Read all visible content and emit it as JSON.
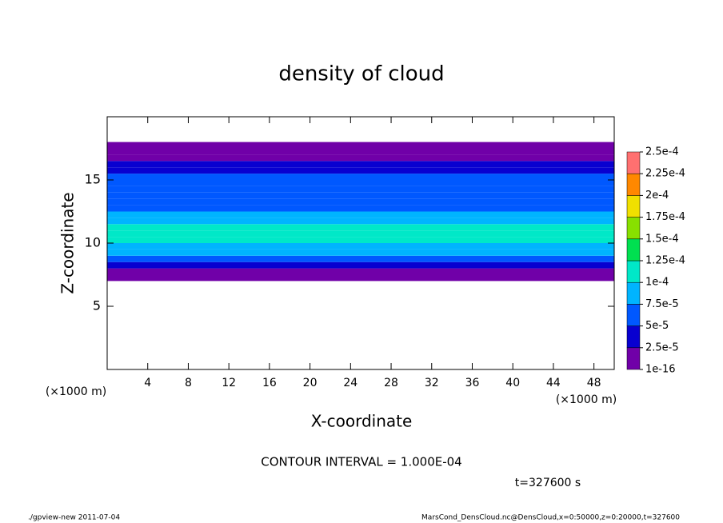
{
  "chart_data": {
    "type": "contour",
    "title": "density of cloud",
    "xlabel": "X-coordinate",
    "ylabel": "Z-coordinate",
    "x_unit": "(×1000 m)",
    "y_unit": "(×1000 m)",
    "xlim": [
      0,
      50
    ],
    "xticks": [
      4,
      8,
      12,
      16,
      20,
      24,
      28,
      32,
      36,
      40,
      44,
      48
    ],
    "ylim": [
      0,
      20
    ],
    "yticks": [
      5,
      10,
      15
    ],
    "z": [
      7,
      7.5,
      8,
      8.5,
      9,
      9.5,
      10,
      10.5,
      11,
      11.5,
      12,
      12.5,
      13,
      13.5,
      14,
      14.5,
      15,
      15.5,
      16,
      16.5,
      17,
      17.5
    ],
    "profile": [
      1e-05,
      2e-05,
      4e-05,
      6e-05,
      8e-05,
      9.5e-05,
      0.000105,
      0.00011,
      0.000105,
      9e-05,
      8e-05,
      7e-05,
      6.5e-05,
      6e-05,
      6e-05,
      5.5e-05,
      5e-05,
      4.5e-05,
      3e-05,
      1e-05,
      1e-05,
      1e-05
    ],
    "levels": [
      {
        "value": 1e-16,
        "label": "1e-16"
      },
      {
        "value": 2.5e-05,
        "label": "2.5e-5"
      },
      {
        "value": 5e-05,
        "label": "5e-5"
      },
      {
        "value": 7.5e-05,
        "label": "7.5e-5"
      },
      {
        "value": 0.0001,
        "label": "1e-4"
      },
      {
        "value": 0.000125,
        "label": "1.25e-4"
      },
      {
        "value": 0.00015,
        "label": "1.5e-4"
      },
      {
        "value": 0.000175,
        "label": "1.75e-4"
      },
      {
        "value": 0.0002,
        "label": "2e-4"
      },
      {
        "value": 0.000225,
        "label": "2.25e-4"
      },
      {
        "value": 0.00025,
        "label": "2.5e-4"
      }
    ],
    "colors": [
      "#7000a8",
      "#0800d0",
      "#0058ff",
      "#00b4ff",
      "#00e8c8",
      "#00e050",
      "#88e000",
      "#f0e000",
      "#ff8800",
      "#ff7070"
    ],
    "contour_interval": "CONTOUR INTERVAL = 1.000E-04",
    "time": "t=327600 s",
    "footer_left": "./gpview-new  2011-07-04",
    "footer_right": "MarsCond_DensCloud.nc@DensCloud,x=0:50000,z=0:20000,t=327600"
  }
}
